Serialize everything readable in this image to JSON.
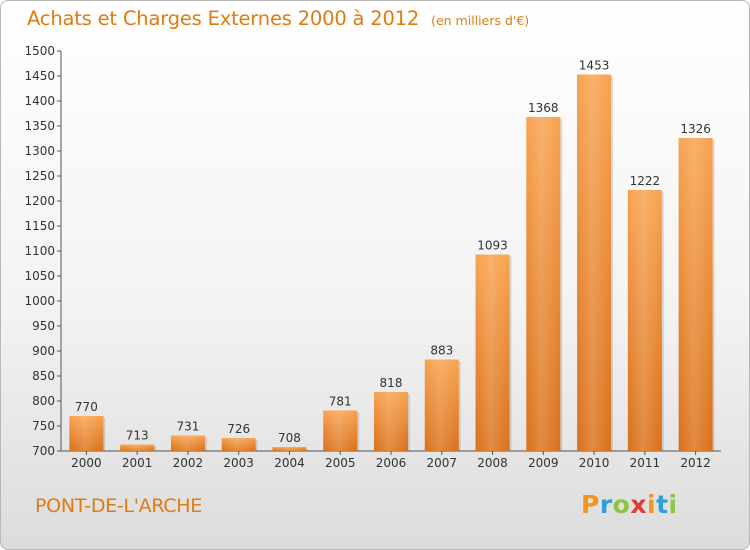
{
  "header": {
    "title": "Achats et Charges Externes 2000 à 2012",
    "unit": "(en milliers d'€)"
  },
  "footer": {
    "city": "PONT-DE-L'ARCHE",
    "logo_text": "Proxiti",
    "logo_colors": [
      "#f7941d",
      "#2e9fd8",
      "#8dc63f",
      "#e63a3a",
      "#f7941d",
      "#2e9fd8",
      "#8dc63f"
    ]
  },
  "chart_data": {
    "type": "bar",
    "title": "Achats et Charges Externes 2000 à 2012",
    "subtitle": "(en milliers d'€)",
    "categories": [
      "2000",
      "2001",
      "2002",
      "2003",
      "2004",
      "2005",
      "2006",
      "2007",
      "2008",
      "2009",
      "2010",
      "2011",
      "2012"
    ],
    "values": [
      770,
      713,
      731,
      726,
      708,
      781,
      818,
      883,
      1093,
      1368,
      1453,
      1222,
      1326
    ],
    "ylim": [
      700,
      1500
    ],
    "yticks": [
      700,
      750,
      800,
      850,
      900,
      950,
      1000,
      1050,
      1100,
      1150,
      1200,
      1250,
      1300,
      1350,
      1400,
      1450,
      1500
    ],
    "grid": false,
    "bar_color": "#f0892a",
    "data_labels": true
  }
}
